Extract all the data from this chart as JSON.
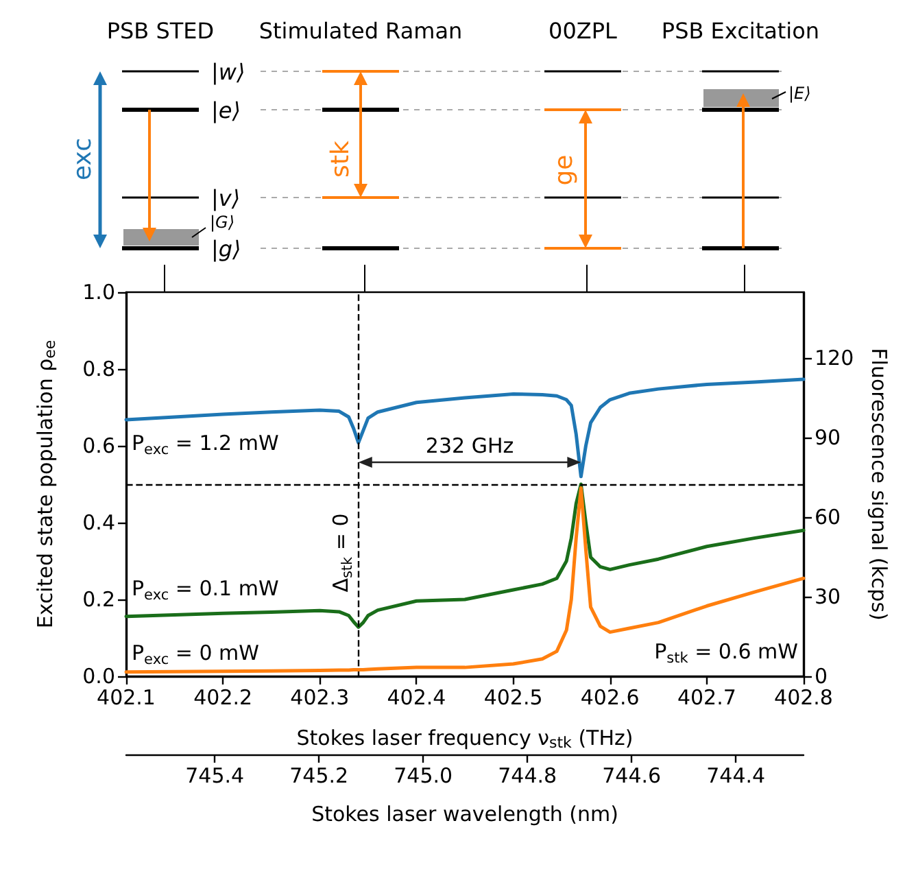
{
  "chart_data": {
    "type": "line",
    "xlabel": "Stokes laser frequency ν$_{stk}$ (THz)",
    "ylabel": "Excited state population ρ$_{ee}$",
    "y2label": "Fluorescence signal (kcps)",
    "x2label": "Stokes laser wavelength (nm)",
    "xlim": [
      402.1,
      402.8
    ],
    "xticks": [
      402.1,
      402.2,
      402.3,
      402.4,
      402.5,
      402.6,
      402.7,
      402.8
    ],
    "ylim": [
      0,
      1
    ],
    "yticks": [
      {
        "value": 0,
        "label": "0.0"
      },
      {
        "value": 0.2,
        "label": "0.2"
      },
      {
        "value": 0.4,
        "label": "0.4"
      },
      {
        "value": 0.6,
        "label": "0.6"
      },
      {
        "value": 0.8,
        "label": "0.8"
      },
      {
        "value": 1,
        "label": "1.0"
      }
    ],
    "y2lim": [
      0,
      144.8
    ],
    "y2ticks": [
      0,
      30,
      60,
      90,
      120
    ],
    "x2lim": [
      745.57,
      744.27
    ],
    "x2ticks": [
      745.4,
      745.2,
      {
        "value": 745,
        "label": "745.0"
      },
      744.8,
      744.6,
      744.4
    ],
    "x": [
      402.1,
      402.15,
      402.2,
      402.25,
      402.3,
      402.32,
      402.33,
      402.335,
      402.34,
      402.345,
      402.35,
      402.36,
      402.4,
      402.45,
      402.5,
      402.53,
      402.545,
      402.555,
      402.56,
      402.565,
      402.57,
      402.575,
      402.58,
      402.59,
      402.6,
      402.62,
      402.65,
      402.7,
      402.75,
      402.8
    ],
    "series": [
      {
        "color": "#1f77b4",
        "values": [
          0.668,
          0.675,
          0.682,
          0.688,
          0.693,
          0.69,
          0.675,
          0.645,
          0.608,
          0.64,
          0.672,
          0.688,
          0.713,
          0.725,
          0.735,
          0.733,
          0.73,
          0.72,
          0.705,
          0.63,
          0.52,
          0.6,
          0.66,
          0.7,
          0.72,
          0.737,
          0.748,
          0.76,
          0.766,
          0.773
        ]
      },
      {
        "color": "#1a6e1a",
        "values": [
          0.156,
          0.16,
          0.164,
          0.167,
          0.171,
          0.168,
          0.158,
          0.142,
          0.128,
          0.14,
          0.158,
          0.172,
          0.196,
          0.2,
          0.225,
          0.24,
          0.255,
          0.3,
          0.36,
          0.45,
          0.5,
          0.4,
          0.31,
          0.285,
          0.278,
          0.29,
          0.305,
          0.338,
          0.36,
          0.38
        ]
      },
      {
        "color": "#ff7f0e",
        "values": [
          0.011,
          0.012,
          0.013,
          0.014,
          0.015,
          0.016,
          0.016,
          0.017,
          0.017,
          0.017,
          0.018,
          0.019,
          0.023,
          0.023,
          0.032,
          0.045,
          0.065,
          0.12,
          0.2,
          0.36,
          0.49,
          0.33,
          0.18,
          0.13,
          0.115,
          0.125,
          0.14,
          0.183,
          0.22,
          0.255
        ]
      }
    ],
    "ref_lines": [
      {
        "axis": "x",
        "value": 402.34,
        "line_style": "dashed",
        "color": "#000000"
      },
      {
        "axis": "y",
        "value": 0.5,
        "line_style": "dashed",
        "color": "#000000"
      }
    ],
    "annotations": [
      "PSB STED",
      "Stimulated Raman",
      "00ZPL",
      "PSB Excitation",
      "|w⟩",
      "|e⟩",
      "|v⟩",
      "|g⟩",
      "|G⟩",
      "|E⟩",
      "exc",
      "stk",
      "ge",
      "P$_{exc}$ = 1.2 mW",
      "P$_{exc}$ = 0.1 mW",
      "P$_{exc}$ = 0 mW",
      "P$_{stk}$ = 0.6 mW",
      "232 GHz",
      "Δ$_{stk}$ = 0"
    ],
    "grid": false,
    "marker": "none",
    "line_style": "solid"
  }
}
